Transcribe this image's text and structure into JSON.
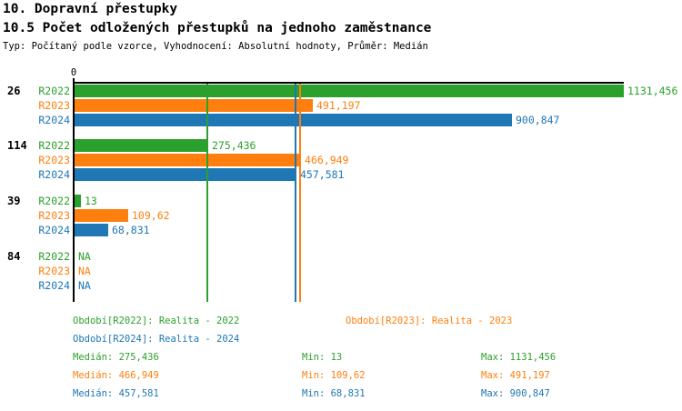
{
  "header": {
    "title": "10. Dopravní přestupky",
    "subtitle": "10.5 Počet odložených přestupků na jednoho zaměstnance",
    "meta": "Typ: Počítaný podle vzorce, Vyhodnocení: Absolutní hodnoty, Průměr: Medián"
  },
  "colors": {
    "green": "#2CA02C",
    "orange": "#FF7F0E",
    "blue": "#1F77B4",
    "axis": "#000000"
  },
  "chart_data": {
    "type": "bar",
    "orientation": "horizontal",
    "axis_origin_label": "0",
    "xlim": [
      0,
      1131.456
    ],
    "grid": false,
    "legend_position": "bottom",
    "groups": [
      "26",
      "114",
      "39",
      "84"
    ],
    "series": [
      {
        "name": "R2022",
        "color_key": "green",
        "values": [
          1131.456,
          275.436,
          13,
          null
        ],
        "value_labels": [
          "1131,456",
          "275,436",
          "13",
          "NA"
        ]
      },
      {
        "name": "R2023",
        "color_key": "orange",
        "values": [
          491.197,
          466.949,
          109.62,
          null
        ],
        "value_labels": [
          "491,197",
          "466,949",
          "109,62",
          "NA"
        ]
      },
      {
        "name": "R2024",
        "color_key": "blue",
        "values": [
          900.847,
          457.581,
          68.831,
          null
        ],
        "value_labels": [
          "900,847",
          "457,581",
          "68,831",
          "NA"
        ]
      }
    ],
    "median_lines": [
      {
        "color_key": "green",
        "value": 275.436
      },
      {
        "color_key": "orange",
        "value": 466.949
      },
      {
        "color_key": "blue",
        "value": 457.581
      }
    ]
  },
  "legend": {
    "items": [
      {
        "label": "Období[R2022]: Realita - 2022",
        "color_key": "green"
      },
      {
        "label": "Období[R2023]: Realita - 2023",
        "color_key": "orange"
      },
      {
        "label": "Období[R2024]: Realita - 2024",
        "color_key": "blue"
      }
    ]
  },
  "stats": {
    "rows": [
      {
        "color_key": "green",
        "median": "Medián: 275,436",
        "min": "Min: 13",
        "max": "Max: 1131,456"
      },
      {
        "color_key": "orange",
        "median": "Medián: 466,949",
        "min": "Min: 109,62",
        "max": "Max: 491,197"
      },
      {
        "color_key": "blue",
        "median": "Medián: 457,581",
        "min": "Min: 68,831",
        "max": "Max: 900,847"
      }
    ]
  }
}
